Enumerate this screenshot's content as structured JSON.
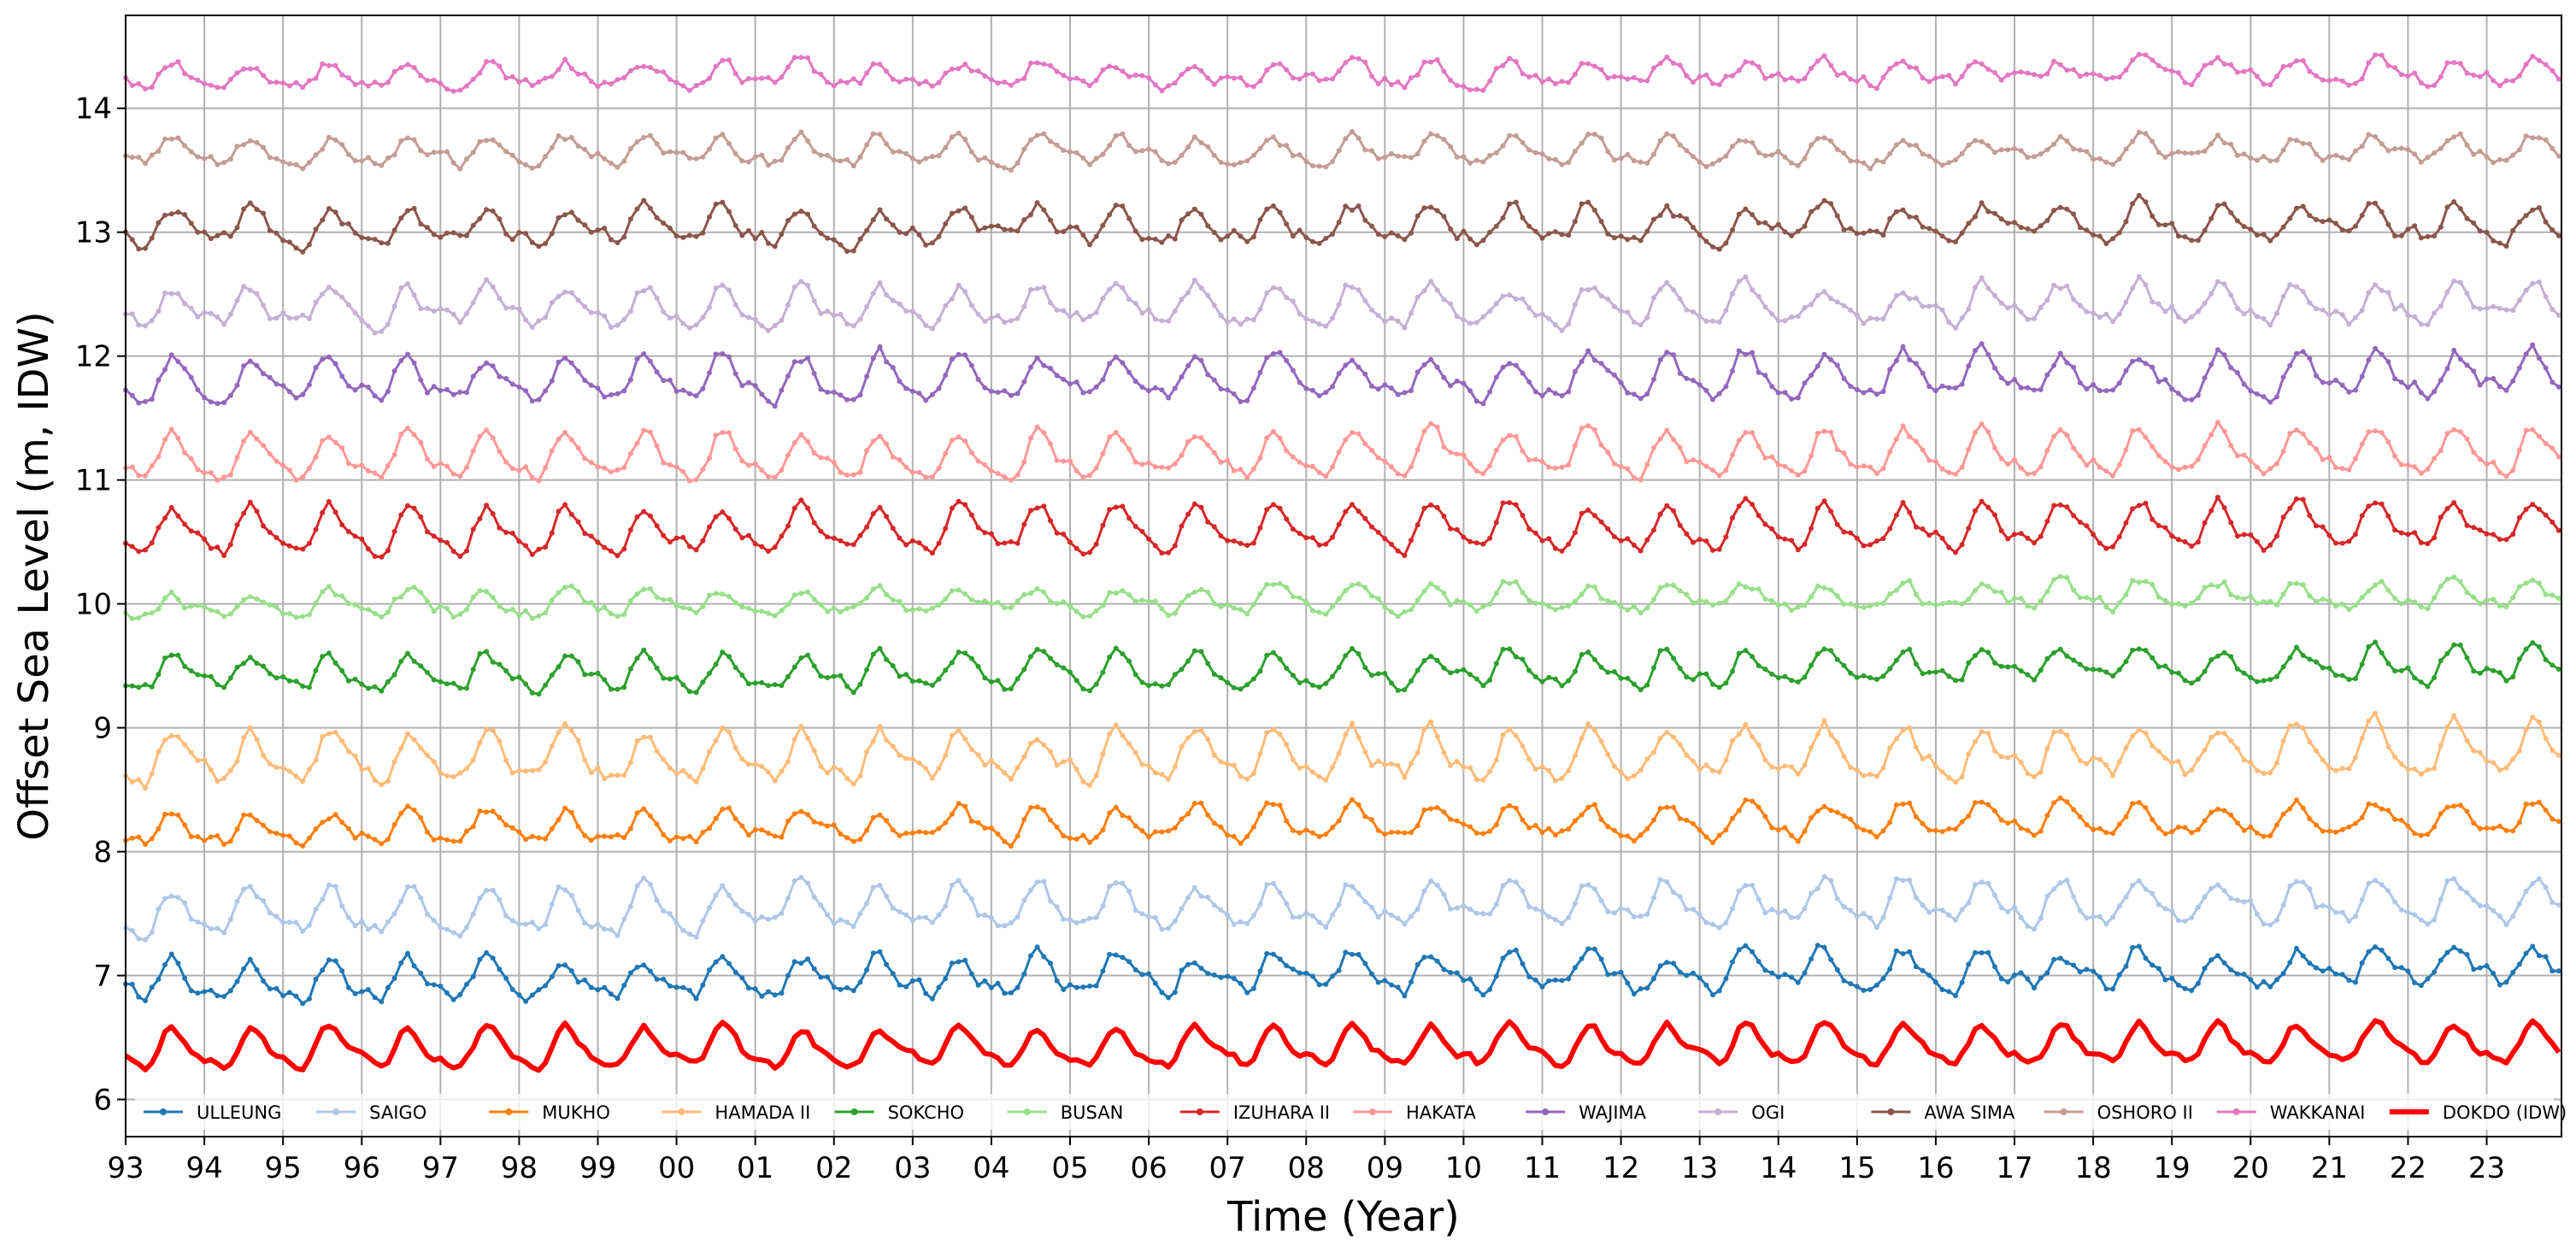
{
  "chart_data": {
    "type": "line",
    "xlabel": "Time (Year)",
    "ylabel": "Offset Sea Level (m, IDW)",
    "xlim": [
      1993.0,
      2023.95
    ],
    "ylim": [
      5.7,
      14.75
    ],
    "x_tick_values": [
      1993,
      1994,
      1995,
      1996,
      1997,
      1998,
      1999,
      2000,
      2001,
      2002,
      2003,
      2004,
      2005,
      2006,
      2007,
      2008,
      2009,
      2010,
      2011,
      2012,
      2013,
      2014,
      2015,
      2016,
      2017,
      2018,
      2019,
      2020,
      2021,
      2022,
      2023
    ],
    "x_tick_labels": [
      "93",
      "94",
      "95",
      "96",
      "97",
      "98",
      "99",
      "00",
      "01",
      "02",
      "03",
      "04",
      "05",
      "06",
      "07",
      "08",
      "09",
      "10",
      "11",
      "12",
      "13",
      "14",
      "15",
      "16",
      "17",
      "18",
      "19",
      "20",
      "21",
      "22",
      "23"
    ],
    "y_tick_values": [
      6,
      7,
      8,
      9,
      10,
      11,
      12,
      13,
      14
    ],
    "y_tick_labels": [
      "6",
      "7",
      "8",
      "9",
      "10",
      "11",
      "12",
      "13",
      "14"
    ],
    "grid": true,
    "legend": "bottom",
    "series": [
      {
        "name": "ULLEUNG",
        "color": "#1f77b4",
        "baseline": 7.0,
        "amplitude": 0.13,
        "trend_per_year": 0.004,
        "noise": 0.05,
        "peak_month": 8.5,
        "seed": 1,
        "marker": true,
        "width": 3
      },
      {
        "name": "SAIGO",
        "color": "#aec7e8",
        "baseline": 7.55,
        "amplitude": 0.15,
        "trend_per_year": 0.003,
        "noise": 0.05,
        "peak_month": 8.5,
        "seed": 2,
        "marker": true,
        "width": 3
      },
      {
        "name": "MUKHO",
        "color": "#ff7f0e",
        "baseline": 8.22,
        "amplitude": 0.11,
        "trend_per_year": 0.003,
        "noise": 0.04,
        "peak_month": 8.5,
        "seed": 3,
        "marker": true,
        "width": 3
      },
      {
        "name": "HAMADA II",
        "color": "#ffbb78",
        "baseline": 8.77,
        "amplitude": 0.17,
        "trend_per_year": 0.003,
        "noise": 0.05,
        "peak_month": 8.5,
        "seed": 4,
        "marker": true,
        "width": 3
      },
      {
        "name": "SOKCHO",
        "color": "#2ca02c",
        "baseline": 9.46,
        "amplitude": 0.12,
        "trend_per_year": 0.003,
        "noise": 0.04,
        "peak_month": 8.5,
        "seed": 5,
        "marker": true,
        "width": 3
      },
      {
        "name": "BUSAN",
        "color": "#98df8a",
        "baseline": 10.03,
        "amplitude": 0.09,
        "trend_per_year": 0.003,
        "noise": 0.04,
        "peak_month": 8.5,
        "seed": 6,
        "marker": true,
        "width": 3
      },
      {
        "name": "IZUHARA II",
        "color": "#d62728",
        "baseline": 10.6,
        "amplitude": 0.16,
        "trend_per_year": 0.002,
        "noise": 0.04,
        "peak_month": 8.5,
        "seed": 7,
        "marker": true,
        "width": 3
      },
      {
        "name": "HAKATA",
        "color": "#ff9896",
        "baseline": 11.2,
        "amplitude": 0.16,
        "trend_per_year": 0.002,
        "noise": 0.04,
        "peak_month": 8.5,
        "seed": 8,
        "marker": true,
        "width": 3
      },
      {
        "name": "WAJIMA",
        "color": "#9467bd",
        "baseline": 11.82,
        "amplitude": 0.15,
        "trend_per_year": 0.002,
        "noise": 0.05,
        "peak_month": 8.5,
        "seed": 9,
        "marker": true,
        "width": 3
      },
      {
        "name": "OGI",
        "color": "#c5b0d5",
        "baseline": 12.4,
        "amplitude": 0.13,
        "trend_per_year": 0.001,
        "noise": 0.05,
        "peak_month": 8.5,
        "seed": 10,
        "marker": true,
        "width": 3
      },
      {
        "name": "AWA SIMA",
        "color": "#8c564b",
        "baseline": 13.05,
        "amplitude": 0.12,
        "trend_per_year": 0.001,
        "noise": 0.05,
        "peak_month": 8.5,
        "seed": 11,
        "marker": true,
        "width": 3
      },
      {
        "name": "OSHORO II",
        "color": "#c49c94",
        "baseline": 13.65,
        "amplitude": 0.09,
        "trend_per_year": 0.001,
        "noise": 0.04,
        "peak_month": 8.5,
        "seed": 12,
        "marker": true,
        "width": 3
      },
      {
        "name": "WAKKANAI",
        "color": "#e377c2",
        "baseline": 14.27,
        "amplitude": 0.08,
        "trend_per_year": 0.001,
        "noise": 0.04,
        "peak_month": 8.5,
        "seed": 13,
        "marker": true,
        "width": 3
      },
      {
        "name": "DOKDO (IDW)",
        "color": "#ff0000",
        "baseline": 6.42,
        "amplitude": 0.14,
        "trend_per_year": 0.002,
        "noise": 0.03,
        "peak_month": 8.5,
        "seed": 14,
        "marker": false,
        "width": 6
      }
    ]
  }
}
